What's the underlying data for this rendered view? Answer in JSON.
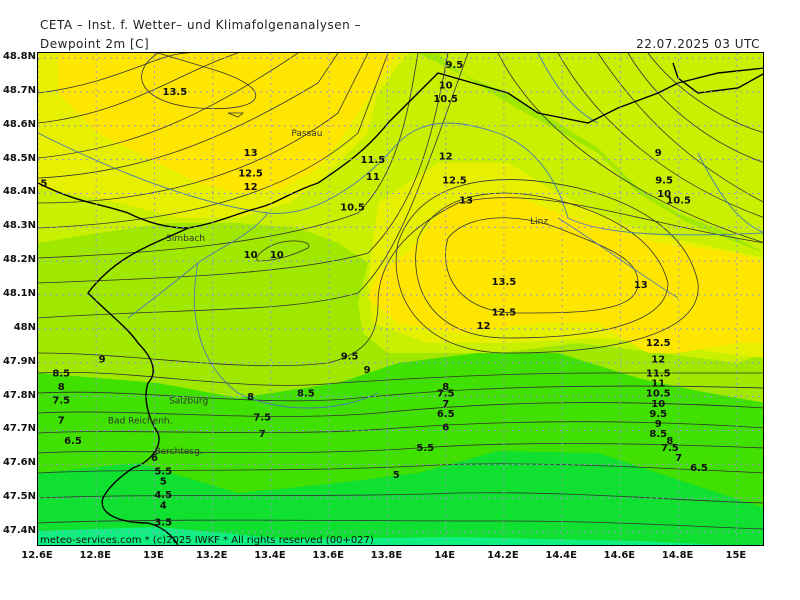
{
  "header": {
    "title": "CETA – Inst. f. Wetter– und Klimafolgenanalysen –",
    "subtitle": "Dewpoint 2m [C]",
    "datetime": "22.07.2025 03 UTC"
  },
  "footer": "meteo-services.com * (c)2025 IWKF * All rights reserved (00+027)",
  "colors": {
    "fill_ge13": "#ffe600",
    "fill_12_13": "#e6f000",
    "fill_10_12": "#c8f000",
    "fill_8_10": "#a0e800",
    "fill_6_8": "#40e000",
    "fill_4_6": "#10e030",
    "fill_lt4": "#10f080",
    "contour": "#333333",
    "border": "#000000",
    "river": "#4a7ab0",
    "grid": "#9999cc"
  },
  "axes": {
    "lat_labels": [
      "48.8N",
      "48.7N",
      "48.6N",
      "48.5N",
      "48.4N",
      "48.3N",
      "48.2N",
      "48.1N",
      "48N",
      "47.9N",
      "47.8N",
      "47.7N",
      "47.6N",
      "47.5N",
      "47.4N"
    ],
    "lon_labels": [
      "12.6E",
      "12.8E",
      "13E",
      "13.2E",
      "13.4E",
      "13.6E",
      "13.8E",
      "14E",
      "14.2E",
      "14.4E",
      "14.6E",
      "14.8E",
      "15E"
    ]
  },
  "places": [
    {
      "name": "Passau",
      "lon": 13.47,
      "lat": 48.57
    },
    {
      "name": "Linz",
      "lon": 14.29,
      "lat": 48.31
    },
    {
      "name": "Simbach",
      "lon": 13.04,
      "lat": 48.26
    },
    {
      "name": "Salzburg",
      "lon": 13.05,
      "lat": 47.78
    },
    {
      "name": "Bad Reichenh.",
      "lon": 12.84,
      "lat": 47.72
    },
    {
      "name": "Berchtesg.",
      "lon": 13.0,
      "lat": 47.63
    }
  ],
  "contour_labels": [
    {
      "t": "13.5",
      "lon": 13.07,
      "lat": 48.69
    },
    {
      "t": "13",
      "lon": 13.33,
      "lat": 48.51
    },
    {
      "t": "12.5",
      "lon": 13.33,
      "lat": 48.45
    },
    {
      "t": "12",
      "lon": 13.33,
      "lat": 48.41
    },
    {
      "t": "11.5",
      "lon": 13.75,
      "lat": 48.49
    },
    {
      "t": "11",
      "lon": 13.75,
      "lat": 48.44
    },
    {
      "t": "10.5",
      "lon": 13.68,
      "lat": 48.35
    },
    {
      "t": "10",
      "lon": 13.33,
      "lat": 48.21
    },
    {
      "t": "10",
      "lon": 13.42,
      "lat": 48.21
    },
    {
      "t": "9.5",
      "lon": 14.03,
      "lat": 48.77
    },
    {
      "t": "10",
      "lon": 14.0,
      "lat": 48.71
    },
    {
      "t": "10.5",
      "lon": 14.0,
      "lat": 48.67
    },
    {
      "t": "12",
      "lon": 14.0,
      "lat": 48.5
    },
    {
      "t": "12.5",
      "lon": 14.03,
      "lat": 48.43
    },
    {
      "t": "13",
      "lon": 14.07,
      "lat": 48.37
    },
    {
      "t": "13.5",
      "lon": 14.2,
      "lat": 48.13
    },
    {
      "t": "12.5",
      "lon": 14.2,
      "lat": 48.04
    },
    {
      "t": "12",
      "lon": 14.13,
      "lat": 48.0
    },
    {
      "t": "13",
      "lon": 14.67,
      "lat": 48.12
    },
    {
      "t": "9",
      "lon": 14.73,
      "lat": 48.51
    },
    {
      "t": "9.5",
      "lon": 14.75,
      "lat": 48.43
    },
    {
      "t": "10",
      "lon": 14.75,
      "lat": 48.39
    },
    {
      "t": "10.5",
      "lon": 14.8,
      "lat": 48.37
    },
    {
      "t": "12.5",
      "lon": 14.73,
      "lat": 47.95
    },
    {
      "t": "12",
      "lon": 14.73,
      "lat": 47.9
    },
    {
      "t": "11.5",
      "lon": 14.73,
      "lat": 47.86
    },
    {
      "t": "11",
      "lon": 14.73,
      "lat": 47.83
    },
    {
      "t": "10.5",
      "lon": 14.73,
      "lat": 47.8
    },
    {
      "t": "10",
      "lon": 14.73,
      "lat": 47.77
    },
    {
      "t": "9.5",
      "lon": 14.73,
      "lat": 47.74
    },
    {
      "t": "9",
      "lon": 14.73,
      "lat": 47.71
    },
    {
      "t": "8.5",
      "lon": 14.73,
      "lat": 47.68
    },
    {
      "t": "8",
      "lon": 14.77,
      "lat": 47.66
    },
    {
      "t": "7.5",
      "lon": 14.77,
      "lat": 47.64
    },
    {
      "t": "7",
      "lon": 14.8,
      "lat": 47.61
    },
    {
      "t": "6.5",
      "lon": 14.87,
      "lat": 47.58
    },
    {
      "t": "9.5",
      "lon": 13.67,
      "lat": 47.91
    },
    {
      "t": "9",
      "lon": 13.73,
      "lat": 47.87
    },
    {
      "t": "8.5",
      "lon": 13.52,
      "lat": 47.8
    },
    {
      "t": "8",
      "lon": 13.33,
      "lat": 47.79
    },
    {
      "t": "7.5",
      "lon": 13.37,
      "lat": 47.73
    },
    {
      "t": "7",
      "lon": 13.37,
      "lat": 47.68
    },
    {
      "t": "8",
      "lon": 14.0,
      "lat": 47.82
    },
    {
      "t": "7.5",
      "lon": 14.0,
      "lat": 47.8
    },
    {
      "t": "7",
      "lon": 14.0,
      "lat": 47.77
    },
    {
      "t": "6.5",
      "lon": 14.0,
      "lat": 47.74
    },
    {
      "t": "6",
      "lon": 14.0,
      "lat": 47.7
    },
    {
      "t": "5.5",
      "lon": 13.93,
      "lat": 47.64
    },
    {
      "t": "5",
      "lon": 13.83,
      "lat": 47.56
    },
    {
      "t": "9",
      "lon": 12.82,
      "lat": 47.9
    },
    {
      "t": "8.5",
      "lon": 12.68,
      "lat": 47.86
    },
    {
      "t": "8",
      "lon": 12.68,
      "lat": 47.82
    },
    {
      "t": "7.5",
      "lon": 12.68,
      "lat": 47.78
    },
    {
      "t": "7",
      "lon": 12.68,
      "lat": 47.72
    },
    {
      "t": "6.5",
      "lon": 12.72,
      "lat": 47.66
    },
    {
      "t": "6",
      "lon": 13.0,
      "lat": 47.61
    },
    {
      "t": "5.5",
      "lon": 13.03,
      "lat": 47.57
    },
    {
      "t": "5",
      "lon": 13.03,
      "lat": 47.54
    },
    {
      "t": "4.5",
      "lon": 13.03,
      "lat": 47.5
    },
    {
      "t": "4",
      "lon": 13.03,
      "lat": 47.47
    },
    {
      "t": "3.5",
      "lon": 13.03,
      "lat": 47.42
    },
    {
      "t": "5",
      "lon": 12.62,
      "lat": 48.42
    }
  ]
}
